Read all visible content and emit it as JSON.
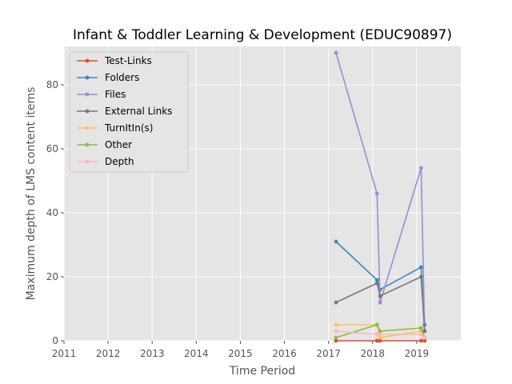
{
  "chart_data": {
    "type": "line",
    "title": "Infant & Toddler Learning & Development (EDUC90897)",
    "xlabel": "Time Period",
    "ylabel": "Maximum depth of LMS content items",
    "xlim": [
      2011,
      2020
    ],
    "ylim": [
      0,
      92
    ],
    "x_ticks": [
      "2011",
      "2012",
      "2013",
      "2014",
      "2015",
      "2016",
      "2017",
      "2018",
      "2019"
    ],
    "y_ticks": [
      "0",
      "20",
      "40",
      "60",
      "80"
    ],
    "grid": true,
    "legend_position": "top-left",
    "series": [
      {
        "name": "Test-Links",
        "color": "#E24A33",
        "x": [
          2017.17,
          2018.1,
          2018.17,
          2019.1,
          2019.18
        ],
        "y": [
          0,
          0,
          0,
          0,
          0
        ]
      },
      {
        "name": "Folders",
        "color": "#348ABD",
        "x": [
          2017.17,
          2018.1,
          2018.17,
          2019.1,
          2019.18
        ],
        "y": [
          31,
          19,
          16,
          23,
          5
        ]
      },
      {
        "name": "Files",
        "color": "#988ED5",
        "x": [
          2017.17,
          2018.1,
          2018.17,
          2019.1,
          2019.18
        ],
        "y": [
          90,
          46,
          12,
          54,
          3
        ]
      },
      {
        "name": "External Links",
        "color": "#777777",
        "x": [
          2017.17,
          2018.1,
          2018.17,
          2019.1,
          2019.18
        ],
        "y": [
          12,
          18,
          14,
          20,
          3
        ]
      },
      {
        "name": "TurnItIn(s)",
        "color": "#FBC15E",
        "x": [
          2017.17,
          2018.1,
          2018.17,
          2019.1,
          2019.18
        ],
        "y": [
          5,
          5,
          1,
          3,
          1
        ]
      },
      {
        "name": "Other",
        "color": "#8EBA42",
        "x": [
          2017.17,
          2018.1,
          2018.17,
          2019.1,
          2019.18
        ],
        "y": [
          1,
          5,
          3,
          4,
          1
        ]
      },
      {
        "name": "Depth",
        "color": "#FFB5B8",
        "x": [
          2017.17,
          2018.1,
          2018.17,
          2019.1,
          2019.18
        ],
        "y": [
          3,
          2,
          2,
          2,
          1
        ]
      }
    ]
  }
}
